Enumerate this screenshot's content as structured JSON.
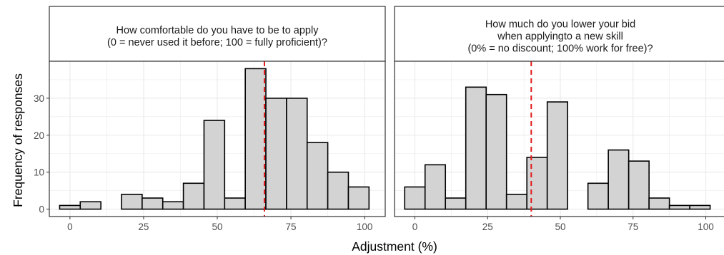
{
  "chart_data": {
    "type": "bar",
    "xlabel": "Adjustment (%)",
    "ylabel": "Frequency of responses",
    "y_ticks": [
      0,
      10,
      20,
      30
    ],
    "ylim": [
      -2,
      40
    ],
    "xlim": [
      -7,
      107
    ],
    "x_ticks": [
      0,
      25,
      50,
      75,
      100
    ],
    "bin_width": 7,
    "grid": true,
    "colors": {
      "bar_fill": "#d3d3d3",
      "bar_stroke": "#000000",
      "vline": "#e31a1c",
      "grid": "#ebebeb",
      "strip_bg": "#ffffff"
    },
    "panels": [
      {
        "title_lines": [
          "How comfortable do you have to be to apply",
          "(0 = never used it before; 100 = fully proficient)?"
        ],
        "bins": [
          {
            "x": 0,
            "value": 1
          },
          {
            "x": 7,
            "value": 2
          },
          {
            "x": 14,
            "value": 0
          },
          {
            "x": 21,
            "value": 4
          },
          {
            "x": 28,
            "value": 3
          },
          {
            "x": 35,
            "value": 2
          },
          {
            "x": 42,
            "value": 7
          },
          {
            "x": 49,
            "value": 24
          },
          {
            "x": 56,
            "value": 3
          },
          {
            "x": 63,
            "value": 38
          },
          {
            "x": 70,
            "value": 30
          },
          {
            "x": 77,
            "value": 30
          },
          {
            "x": 84,
            "value": 18
          },
          {
            "x": 91,
            "value": 10
          },
          {
            "x": 98,
            "value": 6
          }
        ],
        "vline": 66
      },
      {
        "title_lines": [
          "How much do you lower your bid",
          "when applyingto a new skill",
          "(0% = no discount; 100% work for free)?"
        ],
        "bins": [
          {
            "x": 0,
            "value": 6
          },
          {
            "x": 7,
            "value": 12
          },
          {
            "x": 14,
            "value": 3
          },
          {
            "x": 21,
            "value": 33
          },
          {
            "x": 28,
            "value": 31
          },
          {
            "x": 35,
            "value": 4
          },
          {
            "x": 42,
            "value": 14
          },
          {
            "x": 49,
            "value": 29
          },
          {
            "x": 56,
            "value": 0
          },
          {
            "x": 63,
            "value": 7
          },
          {
            "x": 70,
            "value": 16
          },
          {
            "x": 77,
            "value": 13
          },
          {
            "x": 84,
            "value": 3
          },
          {
            "x": 91,
            "value": 1
          },
          {
            "x": 98,
            "value": 1
          }
        ],
        "vline": 40
      }
    ]
  }
}
